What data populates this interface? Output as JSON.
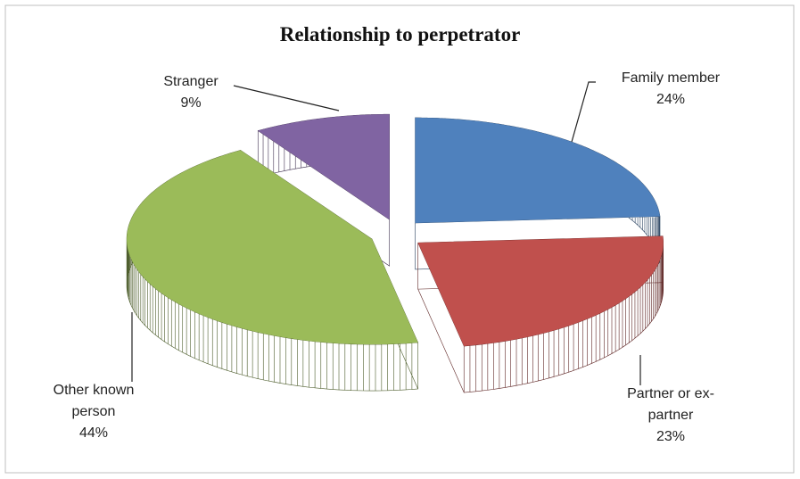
{
  "chart_data": {
    "type": "pie",
    "title": "Relationship to perpetrator",
    "categories": [
      "Family member",
      "Partner or ex-partner",
      "Other known person",
      "Stranger"
    ],
    "values": [
      24,
      23,
      44,
      9
    ],
    "value_labels": [
      "24%",
      "23%",
      "44%",
      "9%"
    ],
    "colors": [
      "#4f81bd",
      "#c0504d",
      "#9bbb59",
      "#8064a2"
    ]
  }
}
